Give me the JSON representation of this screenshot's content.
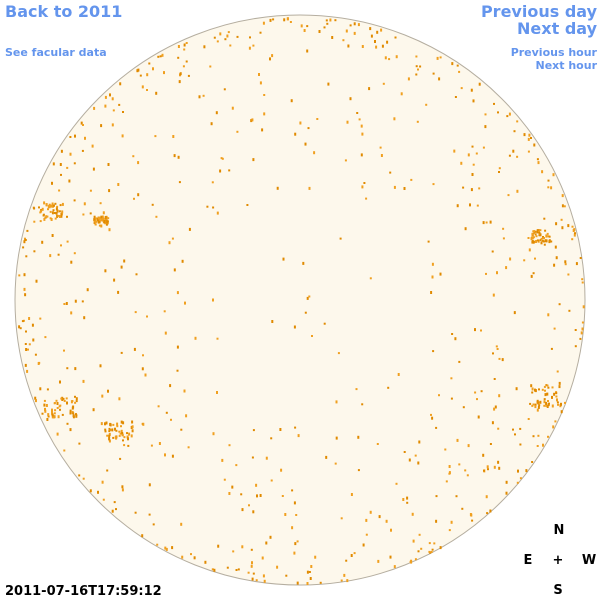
{
  "links": {
    "back": "Back to 2011",
    "facular": "See facular data",
    "previous_day": "Previous day",
    "next_day": "Next day",
    "previous_hour": "Previous hour",
    "next_hour": "Next hour"
  },
  "timestamp": "2011-07-16T17:59:12",
  "compass": {
    "north": "N",
    "east": "E",
    "center": "+",
    "west": "W",
    "south": "S"
  }
}
